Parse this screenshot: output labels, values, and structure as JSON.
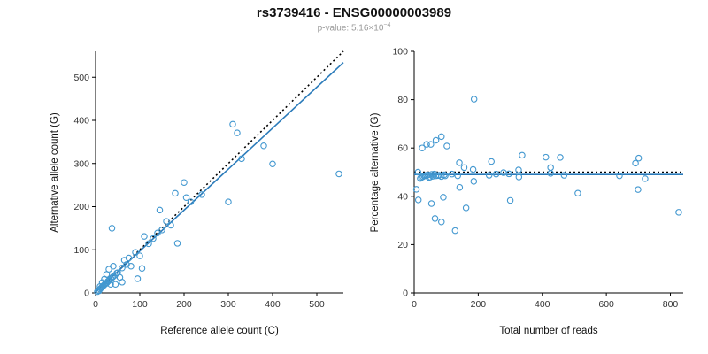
{
  "header": {
    "title": "rs3739416 - ENSG00000003989",
    "pvalue_label": "p-value: 5.16×10",
    "pvalue_exponent": "−4"
  },
  "style": {
    "point_color": "#4398d0",
    "fit_line_color": "#2b7bba",
    "reference_line_color": "#000000"
  },
  "chart_data": [
    {
      "type": "scatter",
      "title": "",
      "xlabel": "Reference allele count (C)",
      "ylabel": "Alternative allele count (G)",
      "xlim": [
        0,
        560
      ],
      "ylim": [
        0,
        560
      ],
      "xticks": [
        0,
        100,
        200,
        300,
        400,
        500
      ],
      "yticks": [
        0,
        100,
        200,
        300,
        400,
        500
      ],
      "grid": false,
      "legend": "none",
      "point_color": "#4398d0",
      "lines": [
        {
          "name": "identity",
          "style": "dotted",
          "color": "#000000",
          "x1": 0,
          "y1": 0,
          "x2": 560,
          "y2": 560
        },
        {
          "name": "regression",
          "style": "solid",
          "color": "#2b7bba",
          "x1": 0,
          "y1": 2,
          "x2": 560,
          "y2": 534
        }
      ],
      "points": [
        [
          4,
          3
        ],
        [
          6,
          6
        ],
        [
          8,
          5
        ],
        [
          10,
          9
        ],
        [
          10,
          15
        ],
        [
          12,
          11
        ],
        [
          14,
          13
        ],
        [
          15,
          24
        ],
        [
          16,
          15
        ],
        [
          18,
          17
        ],
        [
          20,
          19
        ],
        [
          20,
          32
        ],
        [
          22,
          21
        ],
        [
          24,
          22
        ],
        [
          25,
          43
        ],
        [
          26,
          24
        ],
        [
          28,
          27
        ],
        [
          30,
          28
        ],
        [
          30,
          55
        ],
        [
          32,
          31
        ],
        [
          34,
          20
        ],
        [
          35,
          33
        ],
        [
          37,
          150
        ],
        [
          38,
          36
        ],
        [
          40,
          38
        ],
        [
          40,
          62
        ],
        [
          44,
          41
        ],
        [
          45,
          20
        ],
        [
          48,
          46
        ],
        [
          50,
          47
        ],
        [
          55,
          36
        ],
        [
          60,
          25
        ],
        [
          60,
          58
        ],
        [
          65,
          76
        ],
        [
          70,
          66
        ],
        [
          75,
          81
        ],
        [
          80,
          62
        ],
        [
          90,
          94
        ],
        [
          95,
          33
        ],
        [
          100,
          86
        ],
        [
          105,
          57
        ],
        [
          110,
          131
        ],
        [
          120,
          114
        ],
        [
          130,
          126
        ],
        [
          140,
          139
        ],
        [
          145,
          192
        ],
        [
          150,
          146
        ],
        [
          160,
          166
        ],
        [
          170,
          157
        ],
        [
          180,
          231
        ],
        [
          185,
          115
        ],
        [
          200,
          256
        ],
        [
          205,
          221
        ],
        [
          215,
          211
        ],
        [
          240,
          228
        ],
        [
          300,
          211
        ],
        [
          310,
          391
        ],
        [
          320,
          371
        ],
        [
          330,
          311
        ],
        [
          380,
          341
        ],
        [
          400,
          299
        ],
        [
          550,
          276
        ]
      ]
    },
    {
      "type": "scatter",
      "title": "",
      "xlabel": "Total number of reads",
      "ylabel": "Percentage alternative (G)",
      "xlim": [
        0,
        840
      ],
      "ylim": [
        0,
        100
      ],
      "xticks": [
        0,
        200,
        400,
        600,
        800
      ],
      "yticks": [
        0,
        20,
        40,
        60,
        80,
        100
      ],
      "grid": false,
      "legend": "none",
      "point_color": "#4398d0",
      "lines": [
        {
          "name": "fifty-percent-reference",
          "style": "dotted",
          "color": "#000000",
          "x1": 0,
          "y1": 50,
          "x2": 840,
          "y2": 50
        },
        {
          "name": "mean-percentage",
          "style": "solid",
          "color": "#2b7bba",
          "x1": 0,
          "y1": 49,
          "x2": 840,
          "y2": 49
        }
      ],
      "points": [
        [
          7,
          42.9
        ],
        [
          12,
          50.0
        ],
        [
          13,
          38.5
        ],
        [
          19,
          47.4
        ],
        [
          25,
          60.0
        ],
        [
          23,
          47.8
        ],
        [
          27,
          48.1
        ],
        [
          39,
          61.5
        ],
        [
          31,
          48.4
        ],
        [
          35,
          48.6
        ],
        [
          39,
          48.7
        ],
        [
          52,
          61.5
        ],
        [
          43,
          48.8
        ],
        [
          46,
          47.8
        ],
        [
          68,
          63.2
        ],
        [
          50,
          48.0
        ],
        [
          55,
          49.1
        ],
        [
          58,
          48.3
        ],
        [
          85,
          64.7
        ],
        [
          63,
          49.2
        ],
        [
          54,
          37.0
        ],
        [
          68,
          48.5
        ],
        [
          187,
          80.2
        ],
        [
          74,
          48.6
        ],
        [
          78,
          48.7
        ],
        [
          102,
          60.8
        ],
        [
          85,
          48.2
        ],
        [
          65,
          30.8
        ],
        [
          94,
          48.9
        ],
        [
          97,
          48.5
        ],
        [
          91,
          39.6
        ],
        [
          85,
          29.4
        ],
        [
          118,
          49.2
        ],
        [
          141,
          53.9
        ],
        [
          136,
          48.5
        ],
        [
          156,
          51.9
        ],
        [
          142,
          43.7
        ],
        [
          184,
          51.1
        ],
        [
          128,
          25.8
        ],
        [
          186,
          46.2
        ],
        [
          162,
          35.2
        ],
        [
          241,
          54.4
        ],
        [
          234,
          48.7
        ],
        [
          256,
          49.2
        ],
        [
          279,
          49.8
        ],
        [
          337,
          57.0
        ],
        [
          296,
          49.3
        ],
        [
          326,
          50.9
        ],
        [
          327,
          48.0
        ],
        [
          411,
          56.2
        ],
        [
          300,
          38.3
        ],
        [
          456,
          56.1
        ],
        [
          426,
          51.9
        ],
        [
          426,
          49.5
        ],
        [
          468,
          48.7
        ],
        [
          511,
          41.3
        ],
        [
          701,
          55.8
        ],
        [
          691,
          53.7
        ],
        [
          641,
          48.5
        ],
        [
          721,
          47.3
        ],
        [
          699,
          42.8
        ],
        [
          826,
          33.4
        ]
      ]
    }
  ]
}
